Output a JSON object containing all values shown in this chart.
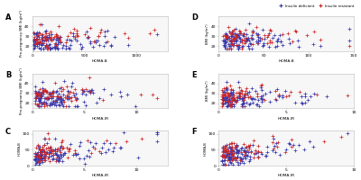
{
  "title": "",
  "legend_labels": [
    "Insulin deficient",
    "Insulin resistant"
  ],
  "legend_colors": [
    "#3333aa",
    "#cc2222"
  ],
  "marker": "+",
  "background_color": "#ffffff",
  "panel_bg": "#f7f7f7",
  "panels": [
    {
      "label": "A",
      "xlabel": "HOMA-B",
      "ylabel": "Pre-pregnancy BMI (kg/m²)",
      "xlim": [
        0,
        1300
      ],
      "ylim": [
        15,
        50
      ],
      "xticks": [
        0,
        500,
        1000
      ],
      "yticks": [
        20,
        30,
        40
      ],
      "row": 0,
      "col": 0
    },
    {
      "label": "D",
      "xlabel": "HOMA-B",
      "ylabel": "BMI (kg/m²)",
      "xlim": [
        0,
        150
      ],
      "ylim": [
        15,
        50
      ],
      "xticks": [
        0,
        50,
        100,
        150
      ],
      "yticks": [
        20,
        30,
        40
      ],
      "row": 0,
      "col": 1
    },
    {
      "label": "B",
      "xlabel": "HOMA-IR",
      "ylabel": "Pre-pregnancy BMI (kg/m²)",
      "xlim": [
        0,
        13
      ],
      "ylim": [
        15,
        50
      ],
      "xticks": [
        0,
        5,
        10
      ],
      "yticks": [
        20,
        30,
        40
      ],
      "row": 1,
      "col": 0
    },
    {
      "label": "E",
      "xlabel": "HOMA-IR",
      "ylabel": "BMI (kg/m²)",
      "xlim": [
        0,
        10
      ],
      "ylim": [
        15,
        50
      ],
      "xticks": [
        0,
        5,
        10
      ],
      "yticks": [
        20,
        30,
        40
      ],
      "row": 1,
      "col": 1
    },
    {
      "label": "C",
      "xlabel": "HOMA-IR",
      "ylabel": "HOMA-B",
      "xlim": [
        0,
        13
      ],
      "ylim": [
        0,
        110
      ],
      "xticks": [
        0,
        5,
        10
      ],
      "yticks": [
        0,
        50,
        100
      ],
      "row": 2,
      "col": 0
    },
    {
      "label": "F",
      "xlabel": "HOMA-IR",
      "ylabel": "HOMA-B",
      "xlim": [
        0,
        10
      ],
      "ylim": [
        0,
        110
      ],
      "xticks": [
        0,
        5,
        10
      ],
      "yticks": [
        0,
        50,
        100
      ],
      "row": 2,
      "col": 1
    }
  ],
  "panel_configs": [
    {
      "n_b": 130,
      "n_r": 70,
      "xr": [
        5,
        1200
      ],
      "yr": [
        17,
        48
      ],
      "corr": 0.12
    },
    {
      "n_b": 130,
      "n_r": 70,
      "xr": [
        5,
        145
      ],
      "yr": [
        17,
        48
      ],
      "corr": 0.18
    },
    {
      "n_b": 130,
      "n_r": 70,
      "xr": [
        0.2,
        12
      ],
      "yr": [
        17,
        48
      ],
      "corr": 0.22
    },
    {
      "n_b": 130,
      "n_r": 70,
      "xr": [
        0.2,
        9.5
      ],
      "yr": [
        17,
        48
      ],
      "corr": 0.28
    },
    {
      "n_b": 130,
      "n_r": 70,
      "xr": [
        0.2,
        12
      ],
      "yr": [
        2,
        105
      ],
      "corr": 0.88
    },
    {
      "n_b": 130,
      "n_r": 70,
      "xr": [
        0.2,
        9.5
      ],
      "yr": [
        2,
        105
      ],
      "corr": 0.92
    }
  ]
}
